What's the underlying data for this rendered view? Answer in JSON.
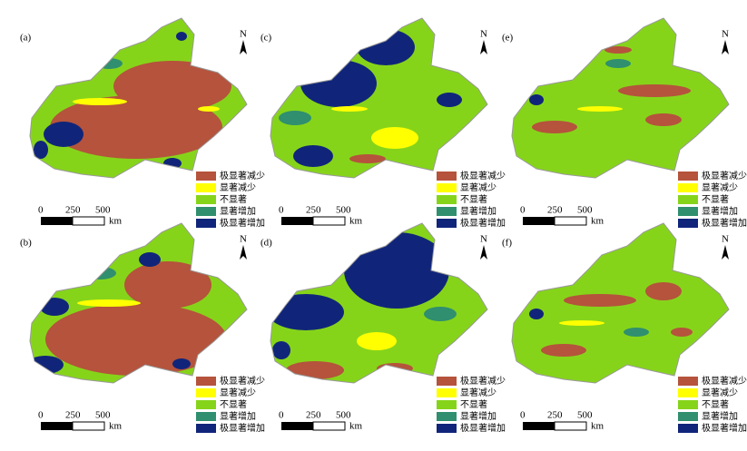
{
  "panels": [
    {
      "label": "(a)"
    },
    {
      "label": "(b)"
    },
    {
      "label": "(c)"
    },
    {
      "label": "(d)"
    },
    {
      "label": "(e)"
    },
    {
      "label": "(f)"
    }
  ],
  "north": "N",
  "legend": [
    {
      "label": "极显著减少",
      "color": "#b5533c"
    },
    {
      "label": "显著减少",
      "color": "#ffff00"
    },
    {
      "label": "不显著",
      "color": "#86d41a"
    },
    {
      "label": "显著增加",
      "color": "#2f8f6f"
    },
    {
      "label": "极显著增加",
      "color": "#10257a"
    }
  ],
  "scale_bar": {
    "ticks": [
      "0",
      "250",
      "500"
    ],
    "unit": "km"
  }
}
